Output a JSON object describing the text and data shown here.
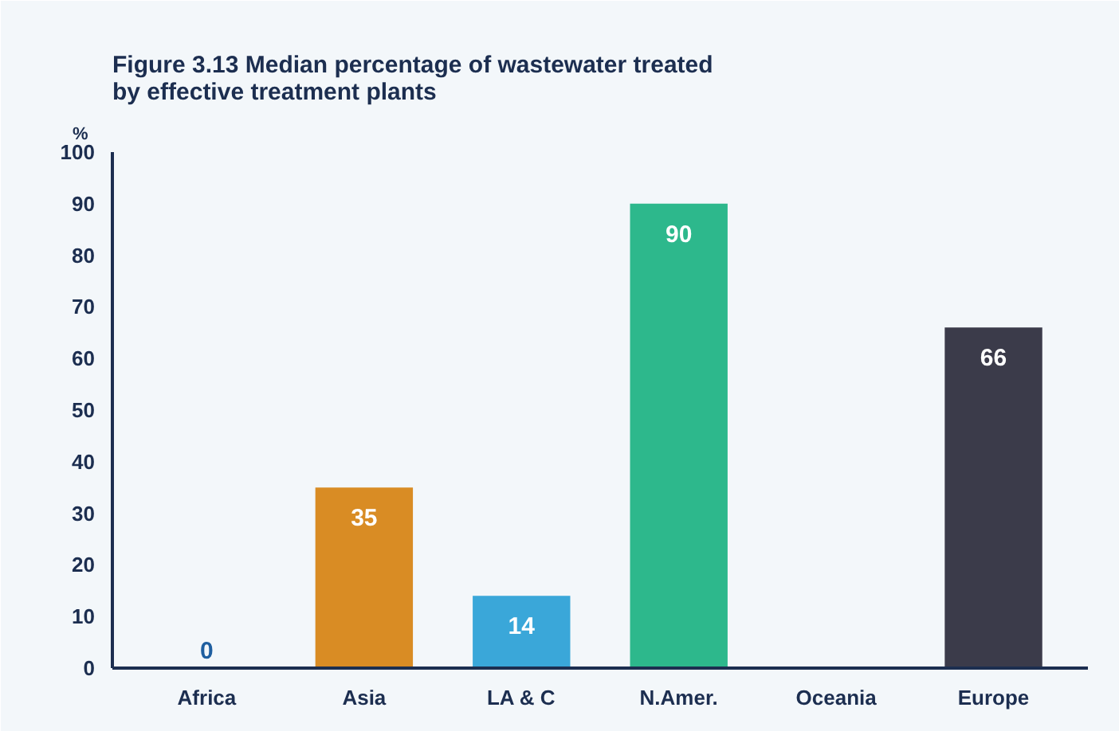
{
  "chart_data": {
    "type": "bar",
    "title": "Figure 3.13  Median percentage of wastewater treated\nby effective treatment plants",
    "ylabel": "%",
    "categories": [
      "Africa",
      "Asia",
      "LA & C",
      "N.Amer.",
      "Oceania",
      "Europe"
    ],
    "values": [
      0,
      35,
      14,
      90,
      null,
      66
    ],
    "value_labels": [
      "0",
      "35",
      "14",
      "90",
      null,
      "66"
    ],
    "colors": [
      "#1f5fa0",
      "#d98c24",
      "#3aa7d9",
      "#2db88c",
      "#888888",
      "#3b3b4a"
    ],
    "ylim": [
      0,
      100
    ],
    "yticks": [
      0,
      10,
      20,
      30,
      40,
      50,
      60,
      70,
      80,
      90,
      100
    ],
    "grid": false
  }
}
